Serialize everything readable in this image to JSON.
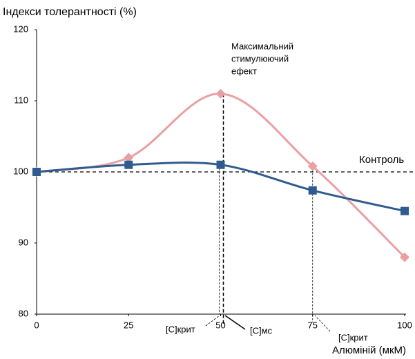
{
  "chart_data": {
    "type": "line",
    "title": "Індекси толерантності (%)",
    "x_label": "Алюміній (мкМ)",
    "x": [
      0,
      25,
      50,
      75,
      100
    ],
    "xlim": [
      0,
      100
    ],
    "xticks": [
      0,
      25,
      50,
      75,
      100
    ],
    "ylim": [
      80,
      120
    ],
    "yticks": [
      80,
      90,
      100,
      110,
      120
    ],
    "grid": false,
    "smooth": true,
    "series": [
      {
        "color": "#e8a0a2",
        "marker": "diamond",
        "values": [
          100,
          102,
          111,
          100.8,
          88
        ]
      },
      {
        "color": "#2f5b8e",
        "marker": "square",
        "values": [
          100,
          101,
          101,
          97.4,
          94.5
        ]
      }
    ],
    "control_value": 100,
    "annotations": {
      "max_effect": [
        "Максимальний",
        "стимулюючий",
        "ефект"
      ],
      "control": "Контроль",
      "c_crit_left": "[С]крит",
      "c_ms": "[С]мс",
      "c_crit_right": "[С]крит"
    }
  }
}
